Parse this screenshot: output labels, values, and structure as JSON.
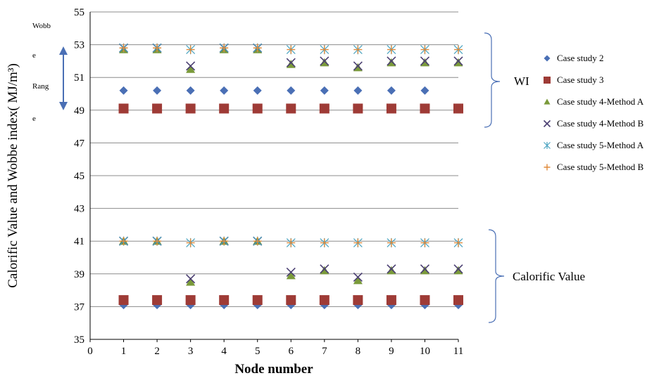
{
  "chart_data": {
    "type": "scatter",
    "title": "",
    "xlabel": "Node number",
    "ylabel": "Calorific Value and Wobbe index( MJ/m³)",
    "xlim": [
      0,
      11
    ],
    "ylim": [
      35,
      55
    ],
    "xticks": [
      "0",
      "1",
      "2",
      "3",
      "4",
      "5",
      "6",
      "7",
      "8",
      "9",
      "10",
      "11"
    ],
    "yticks": [
      "35",
      "37",
      "39",
      "41",
      "43",
      "45",
      "47",
      "49",
      "51",
      "53",
      "55"
    ],
    "grid": "horizontal",
    "legend_position": "right",
    "series": [
      {
        "name": "Case study 2",
        "marker": "diamond",
        "color": "#4a6fb5",
        "points": [
          [
            1,
            50.2
          ],
          [
            2,
            50.2
          ],
          [
            3,
            50.2
          ],
          [
            4,
            50.2
          ],
          [
            5,
            50.2
          ],
          [
            6,
            50.2
          ],
          [
            7,
            50.2
          ],
          [
            8,
            50.2
          ],
          [
            9,
            50.2
          ],
          [
            10,
            50.2
          ],
          [
            1,
            37.1
          ],
          [
            2,
            37.1
          ],
          [
            3,
            37.1
          ],
          [
            4,
            37.1
          ],
          [
            5,
            37.1
          ],
          [
            6,
            37.1
          ],
          [
            7,
            37.1
          ],
          [
            8,
            37.1
          ],
          [
            9,
            37.1
          ],
          [
            10,
            37.1
          ],
          [
            11,
            37.1
          ]
        ]
      },
      {
        "name": "Case study 3",
        "marker": "square",
        "color": "#9e3b36",
        "points": [
          [
            1,
            49.1
          ],
          [
            2,
            49.1
          ],
          [
            3,
            49.1
          ],
          [
            4,
            49.1
          ],
          [
            5,
            49.1
          ],
          [
            6,
            49.1
          ],
          [
            7,
            49.1
          ],
          [
            8,
            49.1
          ],
          [
            9,
            49.1
          ],
          [
            10,
            49.1
          ],
          [
            11,
            49.1
          ],
          [
            1,
            37.4
          ],
          [
            2,
            37.4
          ],
          [
            3,
            37.4
          ],
          [
            4,
            37.4
          ],
          [
            5,
            37.4
          ],
          [
            6,
            37.4
          ],
          [
            7,
            37.4
          ],
          [
            8,
            37.4
          ],
          [
            9,
            37.4
          ],
          [
            10,
            37.4
          ],
          [
            11,
            37.4
          ]
        ]
      },
      {
        "name": "Case study 4-Method A",
        "marker": "triangle",
        "color": "#7a9a3a",
        "points": [
          [
            1,
            52.7
          ],
          [
            2,
            52.7
          ],
          [
            3,
            51.5
          ],
          [
            4,
            52.7
          ],
          [
            5,
            52.7
          ],
          [
            6,
            51.8
          ],
          [
            7,
            51.9
          ],
          [
            8,
            51.6
          ],
          [
            9,
            51.9
          ],
          [
            10,
            51.9
          ],
          [
            11,
            51.9
          ],
          [
            1,
            41.0
          ],
          [
            2,
            41.0
          ],
          [
            3,
            38.5
          ],
          [
            4,
            41.0
          ],
          [
            5,
            41.0
          ],
          [
            6,
            38.9
          ],
          [
            7,
            39.2
          ],
          [
            8,
            38.6
          ],
          [
            9,
            39.2
          ],
          [
            10,
            39.2
          ],
          [
            11,
            39.2
          ]
        ]
      },
      {
        "name": "Case study 4-Method B",
        "marker": "x",
        "color": "#4b3f72",
        "points": [
          [
            1,
            52.8
          ],
          [
            2,
            52.8
          ],
          [
            3,
            51.7
          ],
          [
            4,
            52.8
          ],
          [
            5,
            52.8
          ],
          [
            6,
            51.9
          ],
          [
            7,
            52.0
          ],
          [
            8,
            51.7
          ],
          [
            9,
            52.0
          ],
          [
            10,
            52.0
          ],
          [
            11,
            52.0
          ],
          [
            1,
            41.0
          ],
          [
            2,
            41.0
          ],
          [
            3,
            38.7
          ],
          [
            4,
            41.0
          ],
          [
            5,
            41.0
          ],
          [
            6,
            39.1
          ],
          [
            7,
            39.3
          ],
          [
            8,
            38.8
          ],
          [
            9,
            39.3
          ],
          [
            10,
            39.3
          ],
          [
            11,
            39.3
          ]
        ]
      },
      {
        "name": "Case study 5-Method A",
        "marker": "asterisk",
        "color": "#4aa3c0",
        "points": [
          [
            1,
            52.8
          ],
          [
            2,
            52.8
          ],
          [
            3,
            52.7
          ],
          [
            4,
            52.8
          ],
          [
            5,
            52.8
          ],
          [
            6,
            52.7
          ],
          [
            7,
            52.7
          ],
          [
            8,
            52.7
          ],
          [
            9,
            52.7
          ],
          [
            10,
            52.7
          ],
          [
            11,
            52.7
          ],
          [
            1,
            41.0
          ],
          [
            2,
            41.0
          ],
          [
            3,
            40.9
          ],
          [
            4,
            41.0
          ],
          [
            5,
            41.0
          ],
          [
            6,
            40.9
          ],
          [
            7,
            40.9
          ],
          [
            8,
            40.9
          ],
          [
            9,
            40.9
          ],
          [
            10,
            40.9
          ],
          [
            11,
            40.9
          ]
        ]
      },
      {
        "name": "Case study 5-Method B",
        "marker": "plus",
        "color": "#e08a3a",
        "points": [
          [
            1,
            52.8
          ],
          [
            2,
            52.8
          ],
          [
            3,
            52.7
          ],
          [
            4,
            52.8
          ],
          [
            5,
            52.8
          ],
          [
            6,
            52.7
          ],
          [
            7,
            52.7
          ],
          [
            8,
            52.7
          ],
          [
            9,
            52.7
          ],
          [
            10,
            52.7
          ],
          [
            11,
            52.7
          ],
          [
            1,
            41.0
          ],
          [
            2,
            41.0
          ],
          [
            3,
            40.9
          ],
          [
            4,
            41.0
          ],
          [
            5,
            41.0
          ],
          [
            6,
            40.9
          ],
          [
            7,
            40.9
          ],
          [
            8,
            40.9
          ],
          [
            9,
            40.9
          ],
          [
            10,
            40.9
          ],
          [
            11,
            40.9
          ]
        ]
      }
    ],
    "annotations": {
      "wobbe_range_lines": [
        "Wobb",
        "e",
        "Rang",
        "e"
      ],
      "wi_label": "WI",
      "cv_label": "Calorific Value",
      "arrow_color": "#4a6fb5",
      "bracket_color": "#4a6fb5"
    }
  }
}
